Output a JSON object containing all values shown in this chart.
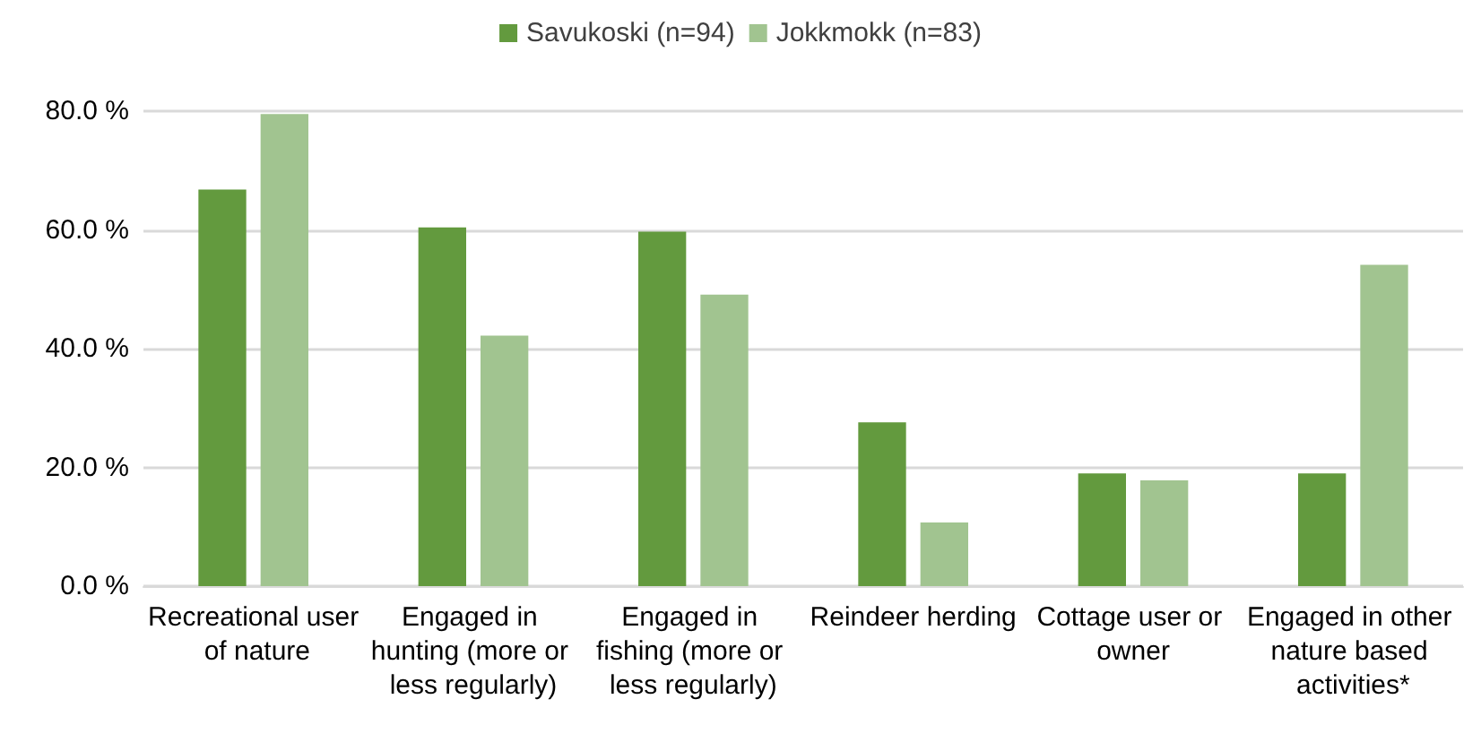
{
  "chart_data": {
    "type": "bar",
    "categories": [
      "Recreational user of nature",
      "Engaged in hunting (more or less regularly)",
      "Engaged in fishing (more or less regularly)",
      "Reindeer herding",
      "Cottage user or owner",
      "Engaged in other nature based activities*"
    ],
    "series": [
      {
        "name": "Savukoski (n=94)",
        "color": "#639a3e",
        "values": [
          66.8,
          60.4,
          59.7,
          27.6,
          19.0,
          19.0
        ]
      },
      {
        "name": "Jokkmokk (n=83)",
        "color": "#a1c490",
        "values": [
          79.5,
          42.2,
          49.1,
          10.7,
          17.8,
          54.1
        ]
      }
    ],
    "ylim": [
      0,
      80
    ],
    "yticks": [
      {
        "value": 0,
        "label": "0.0 %"
      },
      {
        "value": 20,
        "label": "20.0 %"
      },
      {
        "value": 40,
        "label": "40.0 %"
      },
      {
        "value": 60,
        "label": "60.0 %"
      },
      {
        "value": 80,
        "label": "80.0 %"
      }
    ],
    "grid": "y",
    "legend": "top"
  }
}
